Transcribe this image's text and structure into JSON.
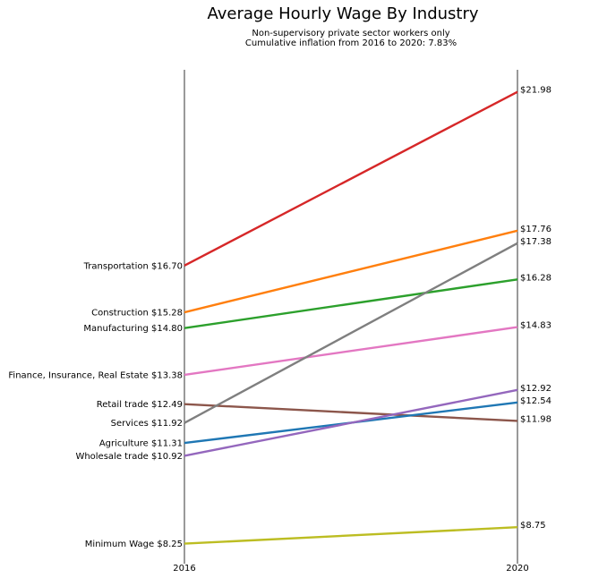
{
  "chart_data": {
    "type": "line",
    "title": "Average Hourly Wage By Industry",
    "subtitle_lines": [
      "Non-supervisory private sector workers only",
      "Cumulative inflation from 2016 to 2020: 7.83%"
    ],
    "x": [
      "2016",
      "2020"
    ],
    "ylim": [
      7.75,
      22.65
    ],
    "grid": false,
    "series": [
      {
        "name": "Transportation",
        "values": [
          16.7,
          21.98
        ],
        "start_label": "$16.70",
        "end_label": "$21.98",
        "color": "#d62728"
      },
      {
        "name": "Construction",
        "values": [
          15.28,
          17.76
        ],
        "start_label": "$15.28",
        "end_label": "$17.76",
        "color": "#ff7f0e"
      },
      {
        "name": "Manufacturing",
        "values": [
          14.8,
          16.28
        ],
        "start_label": "$14.80",
        "end_label": "$16.28",
        "color": "#2ca02c"
      },
      {
        "name": "Finance, Insurance, Real Estate",
        "values": [
          13.38,
          14.83
        ],
        "start_label": "$13.38",
        "end_label": "$14.83",
        "color": "#e377c2"
      },
      {
        "name": "Retail trade",
        "values": [
          12.49,
          11.98
        ],
        "start_label": "$12.49",
        "end_label": "$11.98",
        "color": "#8c564b"
      },
      {
        "name": "Services",
        "values": [
          11.92,
          17.38
        ],
        "start_label": "$11.92",
        "end_label": "$17.38",
        "color": "#7f7f7f"
      },
      {
        "name": "Agriculture",
        "values": [
          11.31,
          12.54
        ],
        "start_label": "$11.31",
        "end_label": "$12.54",
        "color": "#1f77b4"
      },
      {
        "name": "Wholesale trade",
        "values": [
          10.92,
          12.92
        ],
        "start_label": "$10.92",
        "end_label": "$12.92",
        "color": "#9467bd"
      },
      {
        "name": "Minimum Wage",
        "values": [
          8.25,
          8.75
        ],
        "start_label": "$8.25",
        "end_label": "$8.75",
        "color": "#bcbd22"
      }
    ]
  }
}
